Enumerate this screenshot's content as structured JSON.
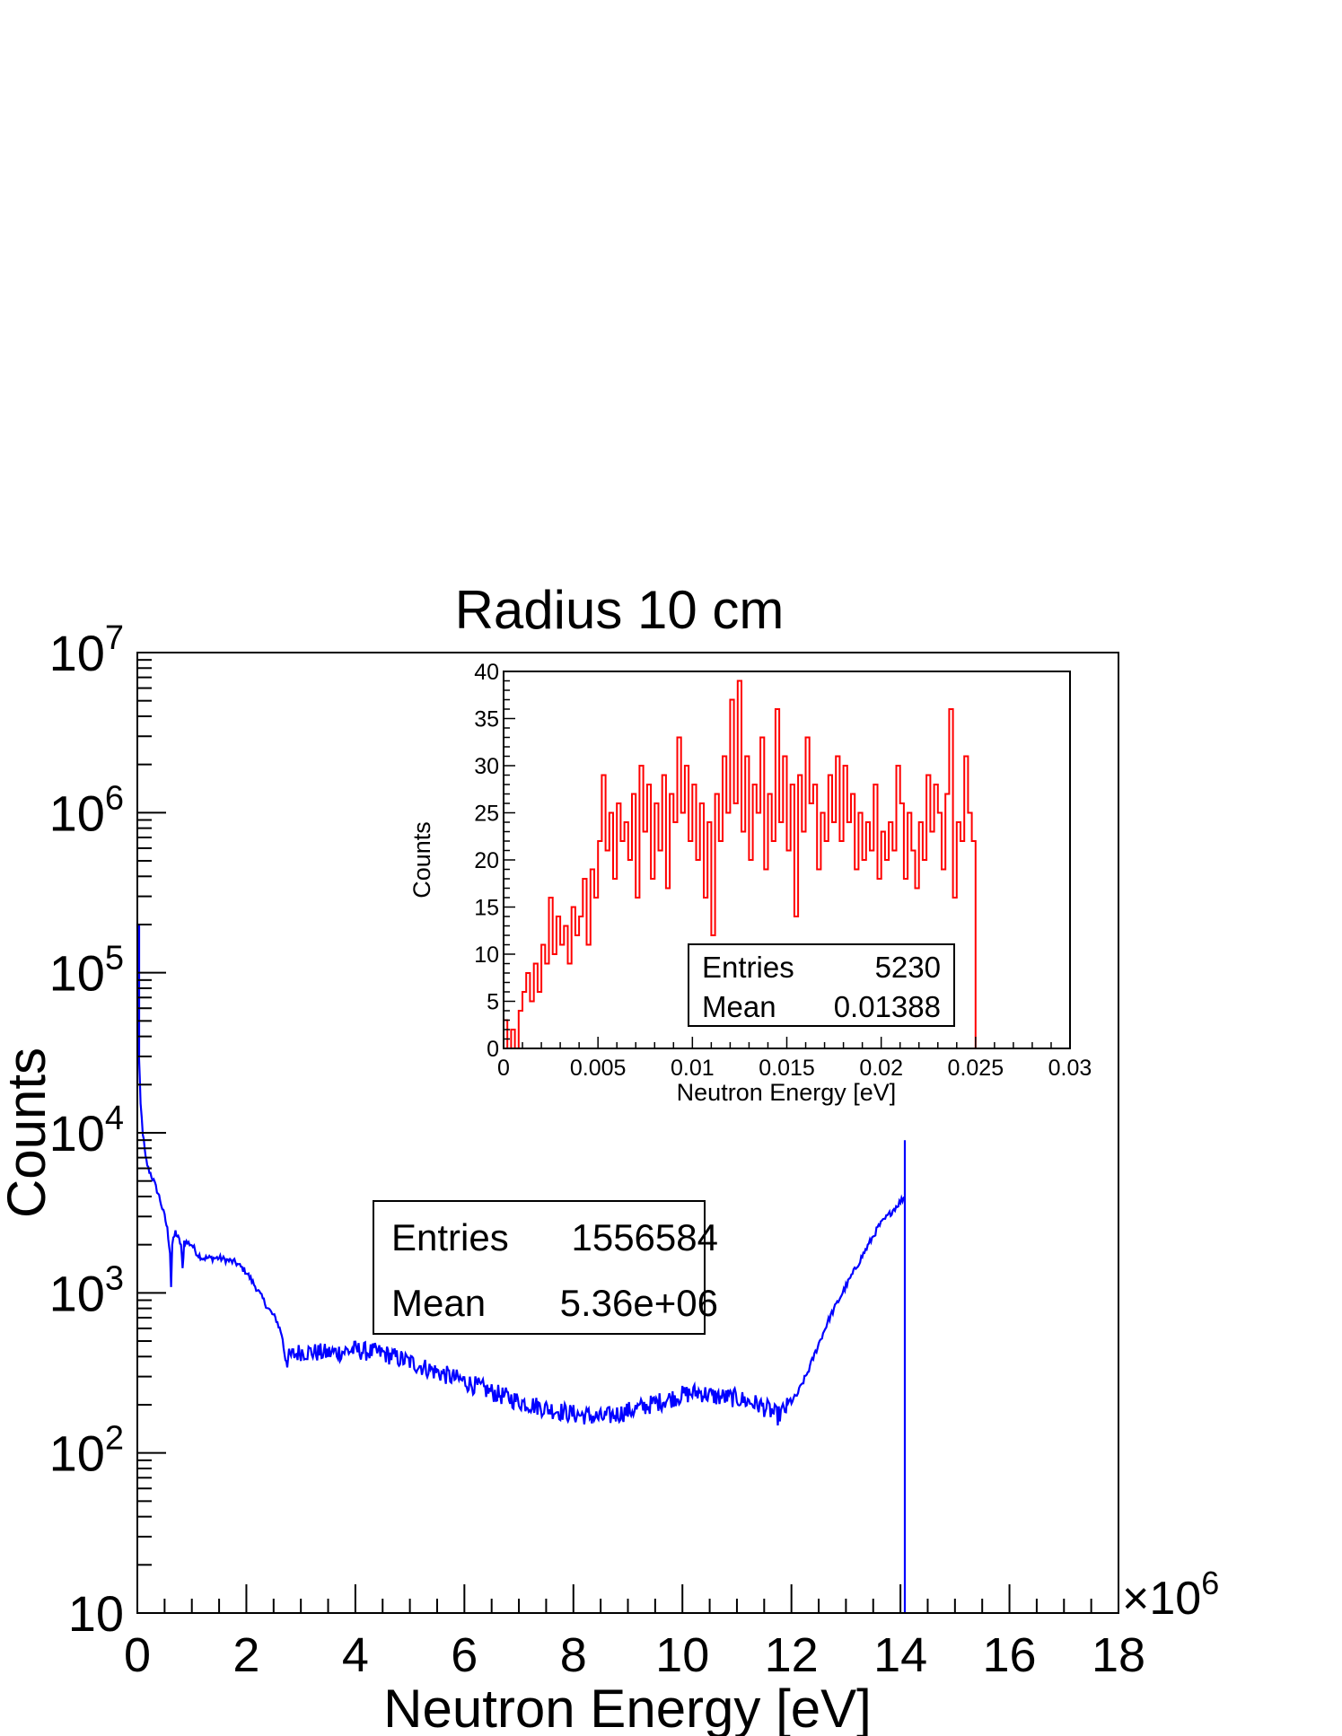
{
  "chart_data": [
    {
      "id": "main",
      "type": "line",
      "title": "Radius 10 cm",
      "xlabel": "Neutron Energy [eV]",
      "ylabel": "Counts",
      "x_multiplier_label": "×10",
      "x_multiplier_exp": "6",
      "xlim": [
        0,
        18000000
      ],
      "ylim": [
        10,
        10000000
      ],
      "y_scale": "log",
      "x_ticks": [
        {
          "v": 0,
          "label": "0"
        },
        {
          "v": 2000000,
          "label": "2"
        },
        {
          "v": 4000000,
          "label": "4"
        },
        {
          "v": 6000000,
          "label": "6"
        },
        {
          "v": 8000000,
          "label": "8"
        },
        {
          "v": 10000000,
          "label": "10"
        },
        {
          "v": 12000000,
          "label": "12"
        },
        {
          "v": 14000000,
          "label": "14"
        },
        {
          "v": 16000000,
          "label": "16"
        },
        {
          "v": 18000000,
          "label": "18"
        }
      ],
      "y_ticks": [
        {
          "v": 10,
          "base": "10",
          "exp": ""
        },
        {
          "v": 100,
          "base": "10",
          "exp": "2"
        },
        {
          "v": 1000,
          "base": "10",
          "exp": "3"
        },
        {
          "v": 10000,
          "base": "10",
          "exp": "4"
        },
        {
          "v": 100000,
          "base": "10",
          "exp": "5"
        },
        {
          "v": 1000000,
          "base": "10",
          "exp": "6"
        },
        {
          "v": 10000000,
          "base": "10",
          "exp": "7"
        }
      ],
      "grid": false,
      "color": "#0000ff",
      "series": [
        {
          "points": [
            [
              0,
              200000
            ],
            [
              30000,
              30000
            ],
            [
              60000,
              15000
            ],
            [
              100000,
              10000
            ],
            [
              150000,
              7000
            ],
            [
              200000,
              6000
            ],
            [
              300000,
              5000
            ],
            [
              400000,
              4000
            ],
            [
              500000,
              3000
            ],
            [
              550000,
              2500
            ],
            [
              600000,
              1800
            ],
            [
              620000,
              1100
            ],
            [
              640000,
              2000
            ],
            [
              700000,
              2400
            ],
            [
              750000,
              2200
            ],
            [
              800000,
              2000
            ],
            [
              830000,
              1400
            ],
            [
              860000,
              2100
            ],
            [
              1000000,
              2000
            ],
            [
              1100000,
              1750
            ],
            [
              1200000,
              1650
            ],
            [
              1500000,
              1650
            ],
            [
              1800000,
              1550
            ],
            [
              2000000,
              1350
            ],
            [
              2200000,
              1050
            ],
            [
              2400000,
              800
            ],
            [
              2550000,
              680
            ],
            [
              2650000,
              550
            ],
            [
              2700000,
              420
            ],
            [
              2750000,
              380
            ],
            [
              2800000,
              400
            ],
            [
              3000000,
              430
            ],
            [
              3500000,
              420
            ],
            [
              4000000,
              440
            ],
            [
              4200000,
              430
            ],
            [
              4500000,
              420
            ],
            [
              5000000,
              370
            ],
            [
              5500000,
              320
            ],
            [
              6000000,
              280
            ],
            [
              6500000,
              240
            ],
            [
              7000000,
              210
            ],
            [
              7500000,
              190
            ],
            [
              8000000,
              175
            ],
            [
              8300000,
              170
            ],
            [
              8500000,
              165
            ],
            [
              8800000,
              175
            ],
            [
              9200000,
              190
            ],
            [
              9600000,
              210
            ],
            [
              10000000,
              230
            ],
            [
              10300000,
              240
            ],
            [
              10600000,
              225
            ],
            [
              11000000,
              220
            ],
            [
              11400000,
              200
            ],
            [
              11600000,
              185
            ],
            [
              11750000,
              170
            ],
            [
              11900000,
              190
            ],
            [
              12100000,
              230
            ],
            [
              12300000,
              320
            ],
            [
              12500000,
              480
            ],
            [
              12700000,
              700
            ],
            [
              13000000,
              1100
            ],
            [
              13300000,
              1700
            ],
            [
              13600000,
              2600
            ],
            [
              13900000,
              3400
            ],
            [
              14080000,
              4000
            ]
          ],
          "spike": {
            "x": 14080000,
            "y": 9000
          }
        }
      ],
      "stats": {
        "entries_label": "Entries",
        "entries": "1556584",
        "mean_label": "Mean",
        "mean": "5.36e+06"
      }
    },
    {
      "id": "inset",
      "type": "line",
      "title": "",
      "xlabel": "Neutron Energy [eV]",
      "ylabel": "Counts",
      "xlim": [
        0,
        0.03
      ],
      "ylim": [
        0,
        40
      ],
      "x_ticks": [
        {
          "v": 0,
          "label": "0"
        },
        {
          "v": 0.005,
          "label": "0.005"
        },
        {
          "v": 0.01,
          "label": "0.01"
        },
        {
          "v": 0.015,
          "label": "0.015"
        },
        {
          "v": 0.02,
          "label": "0.02"
        },
        {
          "v": 0.025,
          "label": "0.025"
        },
        {
          "v": 0.03,
          "label": "0.03"
        }
      ],
      "y_ticks": [
        {
          "v": 0,
          "label": "0"
        },
        {
          "v": 5,
          "label": "5"
        },
        {
          "v": 10,
          "label": "10"
        },
        {
          "v": 15,
          "label": "15"
        },
        {
          "v": 20,
          "label": "20"
        },
        {
          "v": 25,
          "label": "25"
        },
        {
          "v": 30,
          "label": "30"
        },
        {
          "v": 35,
          "label": "35"
        },
        {
          "v": 40,
          "label": "40"
        }
      ],
      "grid": false,
      "color": "#ff0000",
      "bin_width": 0.0001,
      "series": [
        {
          "points": [
            [
              0.0002,
              3
            ],
            [
              0.0004,
              0
            ],
            [
              0.0006,
              2
            ],
            [
              0.0008,
              0
            ],
            [
              0.001,
              4
            ],
            [
              0.0012,
              6
            ],
            [
              0.0014,
              8
            ],
            [
              0.0016,
              5
            ],
            [
              0.0018,
              9
            ],
            [
              0.002,
              6
            ],
            [
              0.0022,
              11
            ],
            [
              0.0024,
              9
            ],
            [
              0.0026,
              16
            ],
            [
              0.0028,
              10
            ],
            [
              0.003,
              14
            ],
            [
              0.0032,
              11
            ],
            [
              0.0034,
              13
            ],
            [
              0.0036,
              9
            ],
            [
              0.0038,
              15
            ],
            [
              0.004,
              12
            ],
            [
              0.0042,
              14
            ],
            [
              0.0044,
              18
            ],
            [
              0.0046,
              11
            ],
            [
              0.0048,
              19
            ],
            [
              0.005,
              16
            ],
            [
              0.0052,
              22
            ],
            [
              0.0054,
              29
            ],
            [
              0.0056,
              21
            ],
            [
              0.0058,
              25
            ],
            [
              0.006,
              18
            ],
            [
              0.0062,
              26
            ],
            [
              0.0064,
              22
            ],
            [
              0.0066,
              24
            ],
            [
              0.0068,
              20
            ],
            [
              0.007,
              27
            ],
            [
              0.0072,
              16
            ],
            [
              0.0074,
              30
            ],
            [
              0.0076,
              23
            ],
            [
              0.0078,
              28
            ],
            [
              0.008,
              18
            ],
            [
              0.0082,
              26
            ],
            [
              0.0084,
              21
            ],
            [
              0.0086,
              29
            ],
            [
              0.0088,
              17
            ],
            [
              0.009,
              27
            ],
            [
              0.0092,
              24
            ],
            [
              0.0094,
              33
            ],
            [
              0.0096,
              25
            ],
            [
              0.0098,
              30
            ],
            [
              0.01,
              22
            ],
            [
              0.0102,
              28
            ],
            [
              0.0104,
              20
            ],
            [
              0.0106,
              26
            ],
            [
              0.0108,
              16
            ],
            [
              0.011,
              24
            ],
            [
              0.0112,
              12
            ],
            [
              0.0114,
              27
            ],
            [
              0.0116,
              22
            ],
            [
              0.0118,
              31
            ],
            [
              0.012,
              25
            ],
            [
              0.0122,
              37
            ],
            [
              0.0124,
              26
            ],
            [
              0.0126,
              39
            ],
            [
              0.0128,
              23
            ],
            [
              0.013,
              31
            ],
            [
              0.0132,
              20
            ],
            [
              0.0134,
              28
            ],
            [
              0.0136,
              25
            ],
            [
              0.0138,
              33
            ],
            [
              0.014,
              19
            ],
            [
              0.0142,
              27
            ],
            [
              0.0144,
              22
            ],
            [
              0.0146,
              36
            ],
            [
              0.0148,
              24
            ],
            [
              0.015,
              31
            ],
            [
              0.0152,
              21
            ],
            [
              0.0154,
              28
            ],
            [
              0.0156,
              14
            ],
            [
              0.0158,
              29
            ],
            [
              0.016,
              23
            ],
            [
              0.0162,
              33
            ],
            [
              0.0164,
              26
            ],
            [
              0.0166,
              28
            ],
            [
              0.0168,
              19
            ],
            [
              0.017,
              25
            ],
            [
              0.0172,
              22
            ],
            [
              0.0174,
              29
            ],
            [
              0.0176,
              24
            ],
            [
              0.0178,
              31
            ],
            [
              0.018,
              22
            ],
            [
              0.0182,
              30
            ],
            [
              0.0184,
              24
            ],
            [
              0.0186,
              27
            ],
            [
              0.0188,
              19
            ],
            [
              0.019,
              25
            ],
            [
              0.0192,
              20
            ],
            [
              0.0194,
              24
            ],
            [
              0.0196,
              21
            ],
            [
              0.0198,
              28
            ],
            [
              0.02,
              18
            ],
            [
              0.0202,
              23
            ],
            [
              0.0204,
              20
            ],
            [
              0.0206,
              24
            ],
            [
              0.0208,
              21
            ],
            [
              0.021,
              30
            ],
            [
              0.0212,
              26
            ],
            [
              0.0214,
              18
            ],
            [
              0.0216,
              25
            ],
            [
              0.0218,
              21
            ],
            [
              0.022,
              17
            ],
            [
              0.0222,
              24
            ],
            [
              0.0224,
              20
            ],
            [
              0.0226,
              29
            ],
            [
              0.0228,
              23
            ],
            [
              0.023,
              28
            ],
            [
              0.0232,
              25
            ],
            [
              0.0234,
              19
            ],
            [
              0.0236,
              27
            ],
            [
              0.0238,
              36
            ],
            [
              0.024,
              16
            ],
            [
              0.0242,
              24
            ],
            [
              0.0244,
              22
            ],
            [
              0.0246,
              31
            ],
            [
              0.0248,
              25
            ],
            [
              0.025,
              22
            ]
          ]
        }
      ],
      "stats": {
        "entries_label": "Entries",
        "entries": "5230",
        "mean_label": "Mean",
        "mean": "0.01388"
      }
    }
  ]
}
